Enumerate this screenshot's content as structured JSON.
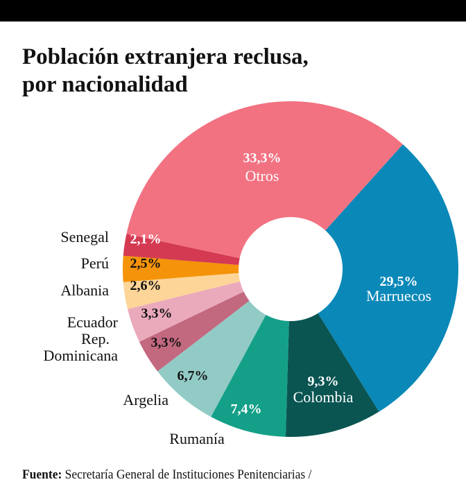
{
  "title_line1": "Población extranjera reclusa,",
  "title_line2": "por nacionalidad",
  "source_label": "Fuente:",
  "source_text": "Secretaría General de Instituciones Penitenciarias /",
  "chart_data": {
    "type": "pie",
    "donut": true,
    "title": "Población extranjera reclusa, por nacionalidad",
    "slices": [
      {
        "name": "Marruecos",
        "value": 29.5,
        "label": "29,5%",
        "color": "#0a88b8"
      },
      {
        "name": "Colombia",
        "value": 9.3,
        "label": "9,3%",
        "color": "#0a5552"
      },
      {
        "name": "Rumanía",
        "value": 7.4,
        "label": "7,4%",
        "color": "#14a088"
      },
      {
        "name": "Argelia",
        "value": 6.7,
        "label": "6,7%",
        "color": "#92cbc6"
      },
      {
        "name": "Rep. Dominicana",
        "value": 3.3,
        "label": "3,3%",
        "color": "#c2687f"
      },
      {
        "name": "Ecuador",
        "value": 3.3,
        "label": "3,3%",
        "color": "#eaaabb"
      },
      {
        "name": "Albania",
        "value": 2.6,
        "label": "2,6%",
        "color": "#fdd598"
      },
      {
        "name": "Perú",
        "value": 2.5,
        "label": "2,5%",
        "color": "#f5930a"
      },
      {
        "name": "Senegal",
        "value": 2.1,
        "label": "2,1%",
        "color": "#d43a52"
      },
      {
        "name": "Otros",
        "value": 33.3,
        "label": "33,3%",
        "color": "#f27282"
      }
    ]
  }
}
